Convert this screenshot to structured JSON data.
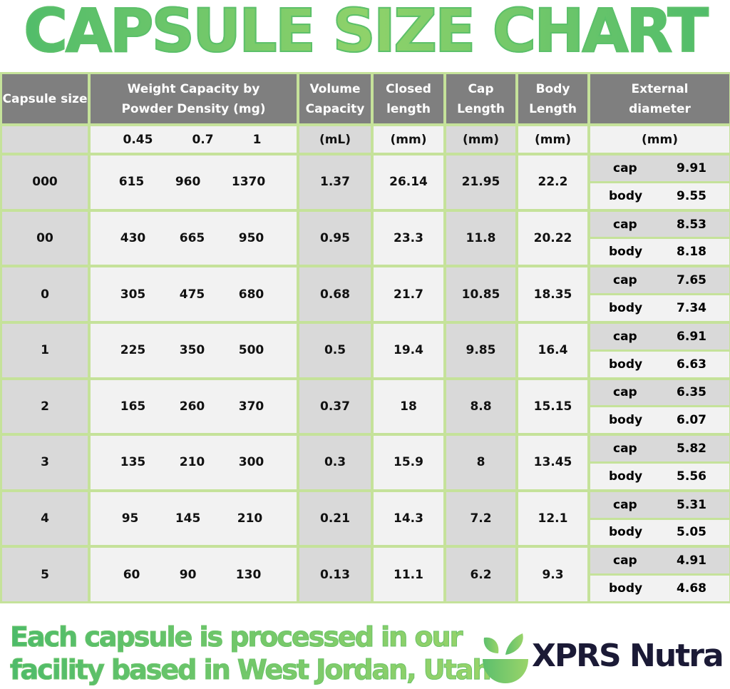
{
  "title": "CAPSULE SIZE CHART",
  "headers": {
    "capsule_size": "Capsule size",
    "weight": "Weight Capacity by Powder Density (mg)",
    "volume": "Volume Capacity",
    "closed": "Closed length",
    "cap": "Cap Length",
    "body": "Body Length",
    "external": "External diameter"
  },
  "subheaders": {
    "capsule_size": "",
    "densities": [
      "0.45",
      "0.7",
      "1"
    ],
    "volume": "(mL)",
    "closed": "(mm)",
    "cap": "(mm)",
    "body": "(mm)",
    "external": "(mm)"
  },
  "diameter_labels": {
    "cap": "cap",
    "body": "body"
  },
  "rows": [
    {
      "size": "000",
      "weights": [
        "615",
        "960",
        "1370"
      ],
      "volume": "1.37",
      "closed": "26.14",
      "cap": "21.95",
      "body": "22.2",
      "ext_cap": "9.91",
      "ext_body": "9.55"
    },
    {
      "size": "00",
      "weights": [
        "430",
        "665",
        "950"
      ],
      "volume": "0.95",
      "closed": "23.3",
      "cap": "11.8",
      "body": "20.22",
      "ext_cap": "8.53",
      "ext_body": "8.18"
    },
    {
      "size": "0",
      "weights": [
        "305",
        "475",
        "680"
      ],
      "volume": "0.68",
      "closed": "21.7",
      "cap": "10.85",
      "body": "18.35",
      "ext_cap": "7.65",
      "ext_body": "7.34"
    },
    {
      "size": "1",
      "weights": [
        "225",
        "350",
        "500"
      ],
      "volume": "0.5",
      "closed": "19.4",
      "cap": "9.85",
      "body": "16.4",
      "ext_cap": "6.91",
      "ext_body": "6.63"
    },
    {
      "size": "2",
      "weights": [
        "165",
        "260",
        "370"
      ],
      "volume": "0.37",
      "closed": "18",
      "cap": "8.8",
      "body": "15.15",
      "ext_cap": "6.35",
      "ext_body": "6.07"
    },
    {
      "size": "3",
      "weights": [
        "135",
        "210",
        "300"
      ],
      "volume": "0.3",
      "closed": "15.9",
      "cap": "8",
      "body": "13.45",
      "ext_cap": "5.82",
      "ext_body": "5.56"
    },
    {
      "size": "4",
      "weights": [
        "95",
        "145",
        "210"
      ],
      "volume": "0.21",
      "closed": "14.3",
      "cap": "7.2",
      "body": "12.1",
      "ext_cap": "5.31",
      "ext_body": "5.05"
    },
    {
      "size": "5",
      "weights": [
        "60",
        "90",
        "130"
      ],
      "volume": "0.13",
      "closed": "11.1",
      "cap": "6.2",
      "body": "9.3",
      "ext_cap": "4.91",
      "ext_body": "4.68"
    }
  ],
  "footer": {
    "line1": "Each capsule is processed in our",
    "line2": "facility based in West Jordan, Utah"
  },
  "brand": {
    "name": "XPRS Nutra",
    "logo_icon": "leaf-bowl-icon"
  },
  "colors": {
    "header_bg": "#7f7f7f",
    "border_green": "#c5e29a",
    "title_green": "#4dbb6a",
    "brand_navy": "#1b1a36"
  }
}
